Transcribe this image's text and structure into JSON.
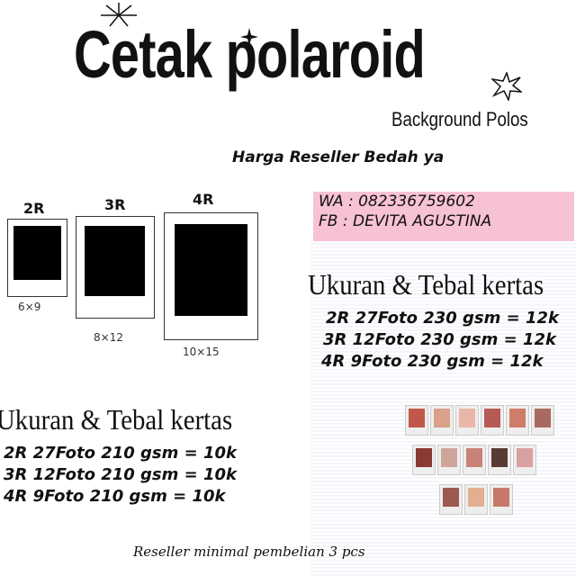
{
  "header": {
    "title": "Cetak polaroid",
    "subtitle": "Background Polos",
    "tagline": "Harga Reseller Bedah ya"
  },
  "contact": {
    "wa": "WA : 082336759602",
    "fb": "FB : DEVITA AGUSTINA"
  },
  "sizes": [
    {
      "label": "2R",
      "dims": "6×9"
    },
    {
      "label": "3R",
      "dims": "8×12"
    },
    {
      "label": "4R",
      "dims": "10×15"
    }
  ],
  "pricing_230": {
    "heading": "Ukuran & Tebal kertas",
    "rows": [
      "2R 27Foto 230 gsm = 12k",
      "3R 12Foto 230 gsm = 12k",
      "4R 9Foto 230 gsm = 12k"
    ]
  },
  "pricing_210": {
    "heading": "Ukuran & Tebal kertas",
    "rows": [
      "2R 27Foto 210 gsm = 10k",
      "3R 12Foto 210 gsm = 10k",
      "4R 9Foto 210 gsm = 10k"
    ]
  },
  "footer": "Reseller minimal pembelian 3 pcs",
  "colors": {
    "pink_box": "#f7c2d3",
    "frame_fill": "#000000"
  }
}
